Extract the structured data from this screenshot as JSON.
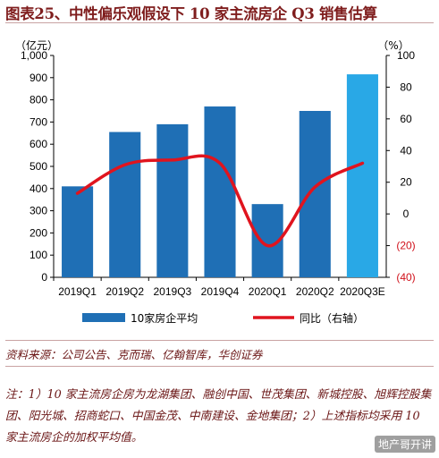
{
  "title": "图表25、中性偏乐观假设下 10 家主流房企 Q3 销售估算",
  "source": "资料来源：公司公告、克而瑞、亿翰智库，华创证券",
  "note": "注：1）10 家主流房企房为龙湖集团、融创中国、世茂集团、新城控股、旭辉控股集团、阳光城、招商蛇口、中国金茂、中南建设、金地集团；2）上述指标均采用 10 家主流房企的加权平均值。",
  "watermark": "地产哥开讲",
  "chart_data": {
    "type": "bar",
    "categories": [
      "2019Q1",
      "2019Q2",
      "2019Q3",
      "2019Q4",
      "2020Q1",
      "2020Q2",
      "2020Q3E"
    ],
    "left_unit": "（亿元）",
    "right_unit": "（%）",
    "ylim": [
      0,
      1000
    ],
    "y_ticks": [
      "0",
      "100",
      "200",
      "300",
      "400",
      "500",
      "600",
      "700",
      "800",
      "900",
      "1,000"
    ],
    "y2lim": [
      -40,
      100
    ],
    "y2_ticks": [
      "(40)",
      "(20)",
      "0",
      "20",
      "40",
      "60",
      "80",
      "100"
    ],
    "series": [
      {
        "name": "10家房企平均",
        "type": "bar",
        "axis": "left",
        "values": [
          410,
          655,
          690,
          770,
          330,
          750,
          915
        ],
        "color": "#1f6fb5",
        "highlight_color": "#29a8e6",
        "highlight_index": 6
      },
      {
        "name": "同比（右轴）",
        "type": "line",
        "axis": "right",
        "values": [
          13,
          31,
          34,
          32,
          -20,
          17,
          32
        ],
        "color": "#e0141e"
      }
    ],
    "legend_position": "bottom",
    "grid": false
  }
}
